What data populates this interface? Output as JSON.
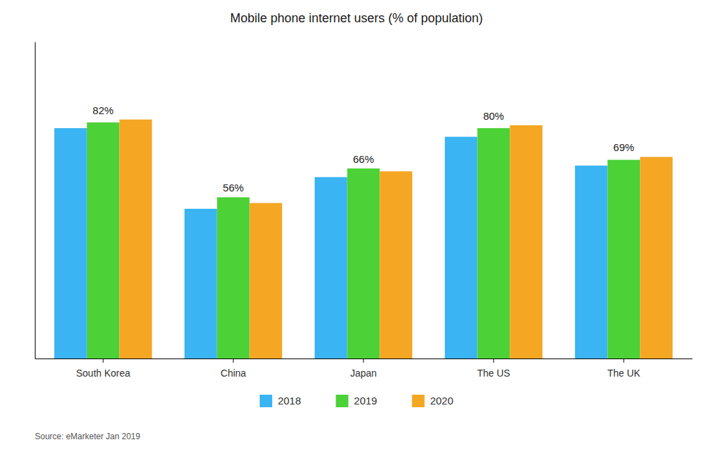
{
  "chart_data": {
    "type": "bar",
    "title": "Mobile phone internet users (% of population)",
    "categories": [
      "South Korea",
      "China",
      "Japan",
      "The US",
      "The UK"
    ],
    "series": [
      {
        "name": "2018",
        "color": "#3AB4F2",
        "values": [
          80,
          52,
          63,
          77,
          67
        ]
      },
      {
        "name": "2019",
        "color": "#4CD137",
        "values": [
          82,
          56,
          66,
          80,
          69
        ],
        "value_labels": [
          "82%",
          "56%",
          "66%",
          "80%",
          "69%"
        ]
      },
      {
        "name": "2020",
        "color": "#F5A623",
        "values": [
          83,
          54,
          65,
          81,
          70
        ]
      }
    ],
    "ylim": [
      0,
      110
    ],
    "yticks": [],
    "tick_labels": "x",
    "grid": false,
    "legend": "bottom",
    "data_labels": true,
    "source": "Source: eMarketer Jan 2019"
  }
}
